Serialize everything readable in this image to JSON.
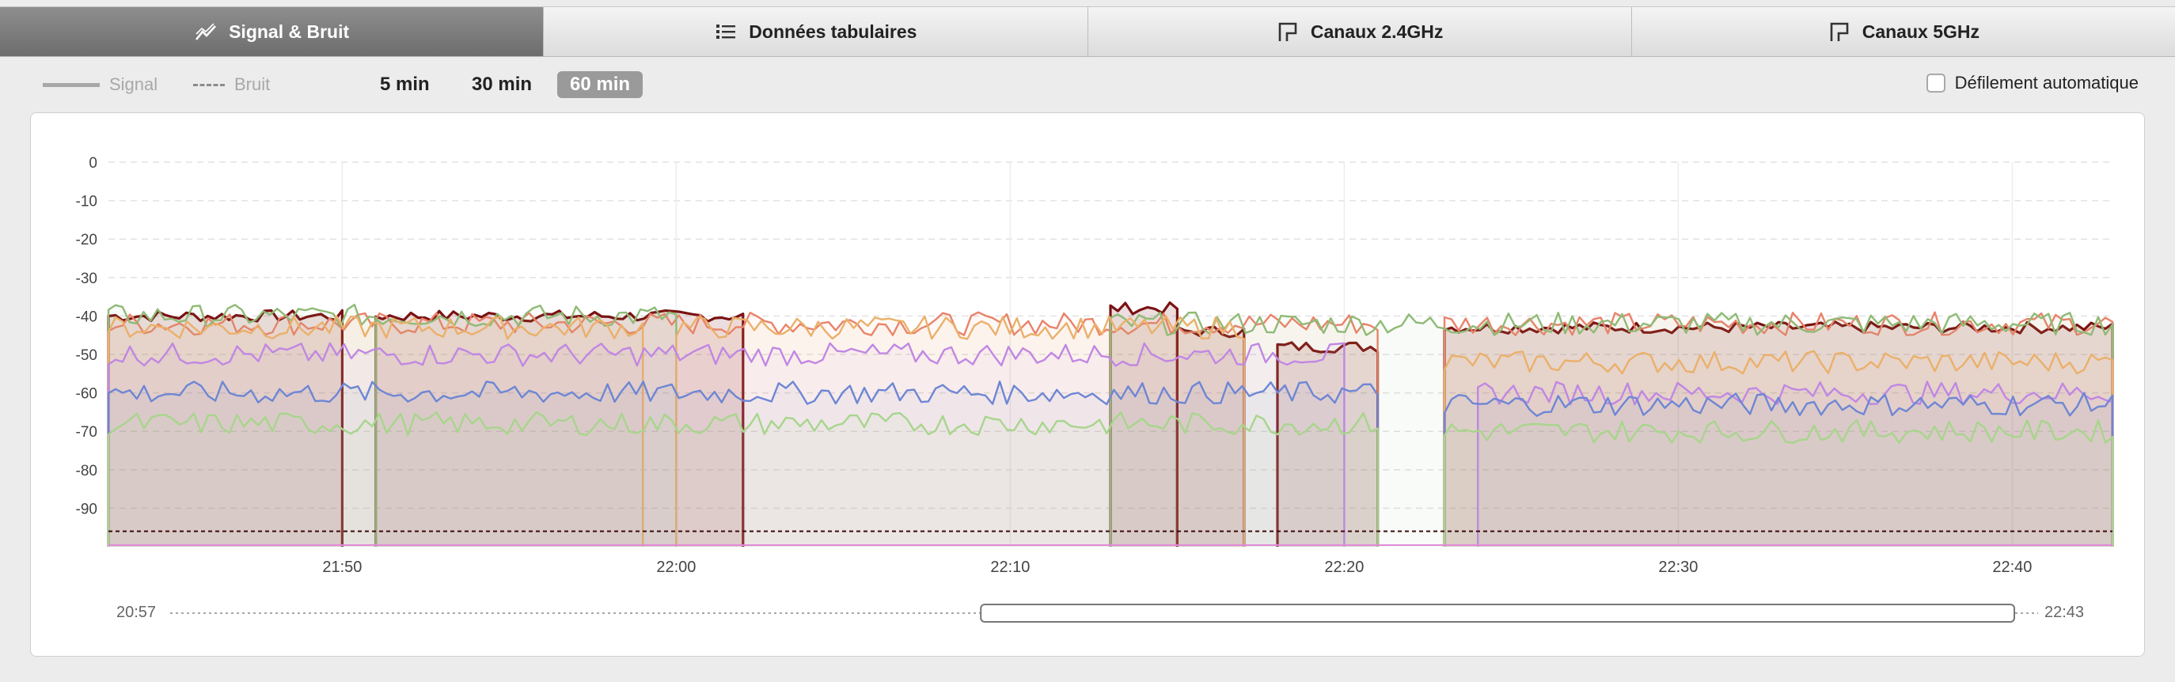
{
  "tabs": [
    {
      "label": "Signal & Bruit",
      "icon": "chart-line-icon",
      "active": true
    },
    {
      "label": "Données tabulaires",
      "icon": "list-icon",
      "active": false
    },
    {
      "label": "Canaux 2.4GHz",
      "icon": "channel-icon",
      "active": false
    },
    {
      "label": "Canaux 5GHz",
      "icon": "channel-icon",
      "active": false
    }
  ],
  "legend": {
    "signal": "Signal",
    "noise": "Bruit"
  },
  "ranges": [
    {
      "label": "5 min"
    },
    {
      "label": "30 min"
    },
    {
      "label": "60 min",
      "active": true
    }
  ],
  "autoscroll": {
    "label": "Défilement automatique",
    "checked": false
  },
  "timeline": {
    "start": "20:57",
    "end": "22:43",
    "window_start": "21:43",
    "window_end": "22:43"
  },
  "colors": {
    "series": [
      "#7a1212",
      "#e9826a",
      "#8fba76",
      "#eab06a",
      "#c087e3",
      "#6e86d4",
      "#a8d58c"
    ],
    "active_tab": "#7d7d7d"
  },
  "chart_data": {
    "type": "line",
    "title": "",
    "xlabel": "",
    "ylabel": "",
    "xlim": [
      "21:43",
      "22:43"
    ],
    "ylim": [
      -100,
      0
    ],
    "yticks": [
      0,
      -10,
      -20,
      -30,
      -40,
      -50,
      -60,
      -70,
      -80,
      -90
    ],
    "xticks": [
      "21:50",
      "22:00",
      "22:10",
      "22:20",
      "22:30",
      "22:40"
    ],
    "grid": true,
    "noise_floor": -96,
    "series": [
      {
        "color": "#7a1212",
        "segments": [
          [
            "21:43",
            "21:50",
            -40
          ],
          [
            "21:51",
            "22:02",
            -40
          ],
          [
            "22:13",
            "22:15",
            -38
          ],
          [
            "22:15",
            "22:17",
            -44
          ],
          [
            "22:18",
            "22:21",
            -48
          ],
          [
            "22:23",
            "22:43",
            -43
          ]
        ]
      },
      {
        "color": "#e9826a",
        "segments": [
          [
            "21:43",
            "22:21",
            -42
          ],
          [
            "22:23",
            "22:43",
            -42
          ]
        ]
      },
      {
        "color": "#8fba76",
        "segments": [
          [
            "21:43",
            "21:51",
            -40
          ],
          [
            "21:51",
            "22:00",
            -40
          ],
          [
            "22:13",
            "22:43",
            -42
          ]
        ]
      },
      {
        "color": "#eab06a",
        "segments": [
          [
            "21:43",
            "21:59",
            -43
          ],
          [
            "22:00",
            "22:17",
            -43
          ],
          [
            "22:23",
            "22:43",
            -52
          ]
        ]
      },
      {
        "color": "#c087e3",
        "segments": [
          [
            "21:43",
            "22:20",
            -50
          ],
          [
            "22:24",
            "22:43",
            -60
          ]
        ]
      },
      {
        "color": "#6e86d4",
        "segments": [
          [
            "21:43",
            "22:21",
            -60
          ],
          [
            "22:23",
            "22:43",
            -63
          ]
        ]
      },
      {
        "color": "#a8d58c",
        "segments": [
          [
            "21:43",
            "22:21",
            -68
          ],
          [
            "22:23",
            "22:43",
            -70
          ]
        ]
      }
    ]
  }
}
